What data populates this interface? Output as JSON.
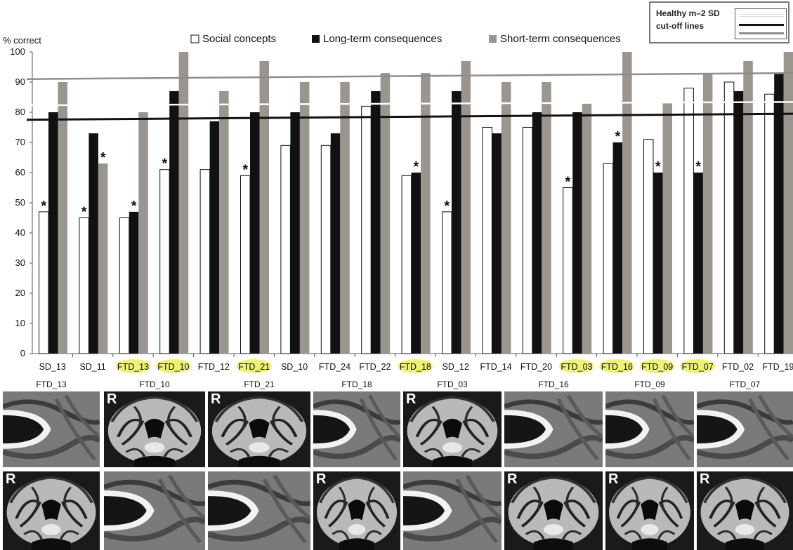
{
  "chart_data": {
    "type": "bar",
    "ylabel": "% correct",
    "ylim": [
      0,
      100
    ],
    "yticks": [
      0,
      10,
      20,
      30,
      40,
      50,
      60,
      70,
      80,
      90,
      100
    ],
    "categories": [
      "SD_13",
      "SD_11",
      "FTD_13",
      "FTD_10",
      "FTD_12",
      "FTD_21",
      "SD_10",
      "FTD_24",
      "FTD_22",
      "FTD_18",
      "SD_12",
      "FTD_14",
      "FTD_20",
      "FTD_03",
      "FTD_16",
      "FTD_09",
      "FTD_07",
      "FTD_02",
      "FTD_19"
    ],
    "highlighted_categories": [
      "FTD_13",
      "FTD_10",
      "FTD_21",
      "FTD_18",
      "FTD_03",
      "FTD_16",
      "FTD_09",
      "FTD_07"
    ],
    "series": [
      {
        "name": "Social concepts",
        "color": "#ffffff",
        "values": [
          47,
          45,
          45,
          61,
          61,
          59,
          69,
          69,
          82,
          59,
          47,
          75,
          75,
          55,
          63,
          71,
          88,
          90,
          86
        ],
        "asterisk": [
          true,
          true,
          false,
          true,
          false,
          true,
          false,
          false,
          false,
          false,
          true,
          false,
          false,
          true,
          false,
          false,
          false,
          false,
          false
        ]
      },
      {
        "name": "Long-term consequences",
        "color": "#111111",
        "values": [
          80,
          73,
          47,
          87,
          77,
          80,
          80,
          73,
          87,
          60,
          87,
          73,
          80,
          80,
          70,
          60,
          60,
          87,
          93
        ],
        "asterisk": [
          false,
          false,
          true,
          false,
          false,
          false,
          false,
          false,
          false,
          true,
          false,
          false,
          false,
          false,
          true,
          true,
          true,
          false,
          false
        ]
      },
      {
        "name": "Short-term consequences",
        "color": "#9b958f",
        "values": [
          90,
          63,
          80,
          100,
          87,
          97,
          90,
          90,
          93,
          93,
          97,
          90,
          90,
          83,
          100,
          83,
          93,
          97,
          100
        ],
        "asterisk": [
          false,
          true,
          false,
          false,
          false,
          false,
          false,
          false,
          false,
          false,
          false,
          false,
          false,
          false,
          false,
          false,
          false,
          false,
          false
        ]
      }
    ],
    "cutoff_lines": [
      {
        "series": "Social concepts",
        "color": "#ffffff",
        "y_start": 82.3,
        "y_end": 83.4
      },
      {
        "series": "Long-term consequences",
        "color": "#111111",
        "y_start": 77.5,
        "y_end": 79.5
      },
      {
        "series": "Short-term consequences",
        "color": "#8d8d8d",
        "y_start": 91,
        "y_end": 93
      }
    ],
    "asterisk_text": "*"
  },
  "legend": {
    "items": [
      "Social concepts",
      "Long-term consequences",
      "Short-term consequences"
    ],
    "cutoff_title_line1": "Healthy m–2 SD",
    "cutoff_title_line2": "cut-off lines",
    "colors": {
      "social": "#ffffff",
      "long": "#111111",
      "short": "#9b958f",
      "cutoff_short": "#8d8d8d"
    }
  },
  "highlight_color": "#eef07a",
  "mri_titles": [
    "FTD_13",
    "FTD_10",
    "FTD_21",
    "FTD_18",
    "FTD_03",
    "FTD_16",
    "FTD_09",
    "FTD_07"
  ],
  "mri_markers": {
    "top": [
      "",
      "R",
      "R",
      "",
      "R",
      "",
      "",
      ""
    ],
    "bottom": [
      "R",
      "",
      "",
      "R",
      "",
      "R",
      "R",
      "R"
    ]
  }
}
